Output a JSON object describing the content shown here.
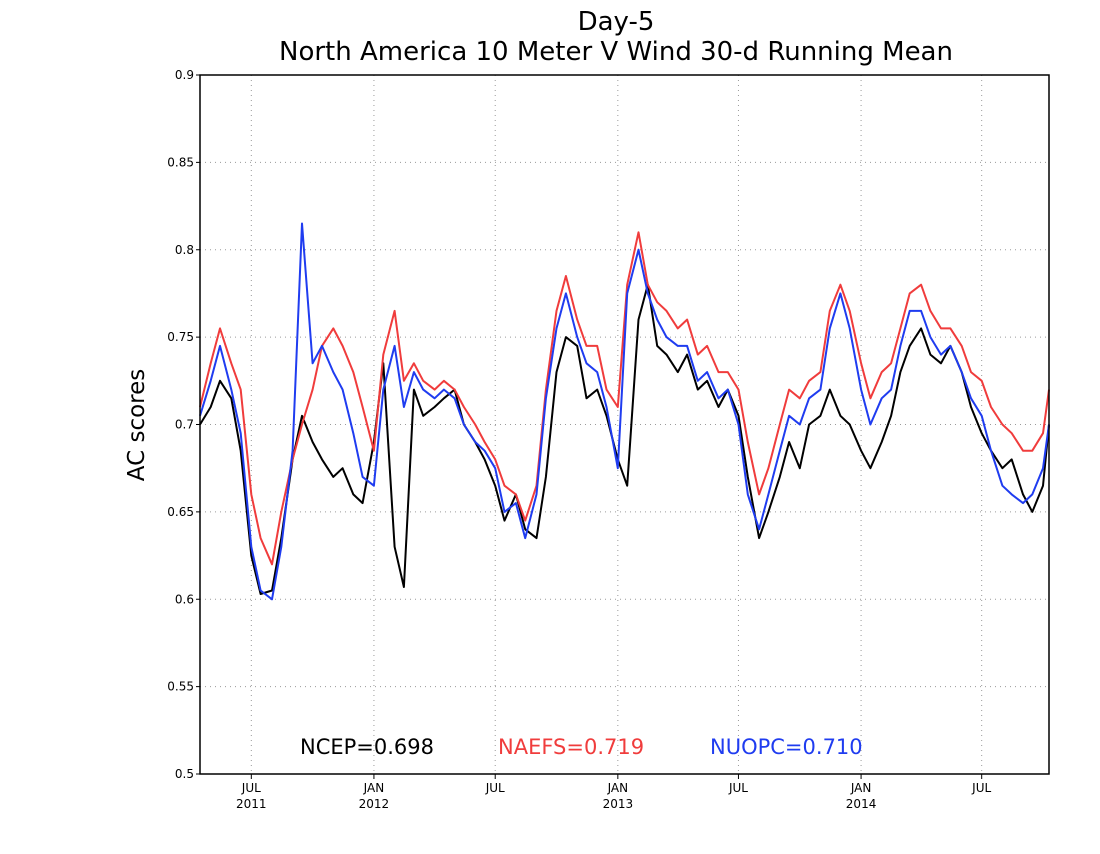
{
  "chart_data": {
    "type": "line",
    "title": "Day-5",
    "subtitle": "North America 10 Meter V Wind 30-d Running Mean",
    "xlabel": "",
    "ylabel": "AC scores",
    "ylim": [
      0.5,
      0.9
    ],
    "y_ticks": [
      "0.5",
      "0.55",
      "0.6",
      "0.65",
      "0.7",
      "0.75",
      "0.8",
      "0.85",
      "0.9"
    ],
    "y_tick_values": [
      0.5,
      0.55,
      0.6,
      0.65,
      0.7,
      0.75,
      0.8,
      0.85,
      0.9
    ],
    "xlim": [
      "2011-04-15",
      "2014-10-10"
    ],
    "x_ticks": [
      {
        "date": "2011-07-01",
        "month": "JUL",
        "year": "2011"
      },
      {
        "date": "2012-01-01",
        "month": "JAN",
        "year": "2012"
      },
      {
        "date": "2012-07-01",
        "month": "JUL",
        "year": ""
      },
      {
        "date": "2013-01-01",
        "month": "JAN",
        "year": "2013"
      },
      {
        "date": "2013-07-01",
        "month": "JUL",
        "year": ""
      },
      {
        "date": "2014-01-01",
        "month": "JAN",
        "year": "2014"
      },
      {
        "date": "2014-07-01",
        "month": "JUL",
        "year": ""
      }
    ],
    "grid": true,
    "legend_placement": "bottom",
    "series": [
      {
        "name": "NCEP",
        "legend_label": "NCEP=0.698",
        "color": "#000000",
        "x": [
          "2011-04-15",
          "2011-05-01",
          "2011-05-15",
          "2011-06-01",
          "2011-06-15",
          "2011-07-01",
          "2011-07-15",
          "2011-08-01",
          "2011-08-15",
          "2011-09-01",
          "2011-09-15",
          "2011-10-01",
          "2011-10-15",
          "2011-11-01",
          "2011-11-15",
          "2011-12-01",
          "2011-12-15",
          "2012-01-01",
          "2012-01-15",
          "2012-02-01",
          "2012-02-15",
          "2012-03-01",
          "2012-03-15",
          "2012-04-01",
          "2012-04-15",
          "2012-05-01",
          "2012-05-15",
          "2012-06-01",
          "2012-06-15",
          "2012-07-01",
          "2012-07-15",
          "2012-08-01",
          "2012-08-15",
          "2012-09-01",
          "2012-09-15",
          "2012-10-01",
          "2012-10-15",
          "2012-11-01",
          "2012-11-15",
          "2012-12-01",
          "2012-12-15",
          "2013-01-01",
          "2013-01-15",
          "2013-02-01",
          "2013-02-15",
          "2013-03-01",
          "2013-03-15",
          "2013-04-01",
          "2013-04-15",
          "2013-05-01",
          "2013-05-15",
          "2013-06-01",
          "2013-06-15",
          "2013-07-01",
          "2013-07-15",
          "2013-08-01",
          "2013-08-15",
          "2013-09-01",
          "2013-09-15",
          "2013-10-01",
          "2013-10-15",
          "2013-11-01",
          "2013-11-15",
          "2013-12-01",
          "2013-12-15",
          "2014-01-01",
          "2014-01-15",
          "2014-02-01",
          "2014-02-15",
          "2014-03-01",
          "2014-03-15",
          "2014-04-01",
          "2014-04-15",
          "2014-05-01",
          "2014-05-15",
          "2014-06-01",
          "2014-06-15",
          "2014-07-01",
          "2014-07-15",
          "2014-08-01",
          "2014-08-15",
          "2014-09-01",
          "2014-09-15",
          "2014-10-01",
          "2014-10-10"
        ],
        "values": [
          0.7,
          0.71,
          0.725,
          0.715,
          0.685,
          0.625,
          0.603,
          0.605,
          0.635,
          0.68,
          0.705,
          0.69,
          0.68,
          0.67,
          0.675,
          0.66,
          0.655,
          0.69,
          0.735,
          0.63,
          0.607,
          0.72,
          0.705,
          0.71,
          0.715,
          0.72,
          0.7,
          0.69,
          0.68,
          0.665,
          0.645,
          0.66,
          0.64,
          0.635,
          0.67,
          0.73,
          0.75,
          0.745,
          0.715,
          0.72,
          0.705,
          0.68,
          0.665,
          0.76,
          0.78,
          0.745,
          0.74,
          0.73,
          0.74,
          0.72,
          0.725,
          0.71,
          0.72,
          0.705,
          0.67,
          0.635,
          0.65,
          0.67,
          0.69,
          0.675,
          0.7,
          0.705,
          0.72,
          0.705,
          0.7,
          0.685,
          0.675,
          0.69,
          0.705,
          0.73,
          0.745,
          0.755,
          0.74,
          0.735,
          0.745,
          0.73,
          0.71,
          0.695,
          0.685,
          0.675,
          0.68,
          0.66,
          0.65,
          0.665,
          0.7
        ]
      },
      {
        "name": "NAEFS",
        "legend_label": "NAEFS=0.719",
        "color": "#f03c3c",
        "x": [
          "2011-04-15",
          "2011-05-01",
          "2011-05-15",
          "2011-06-01",
          "2011-06-15",
          "2011-07-01",
          "2011-07-15",
          "2011-08-01",
          "2011-08-15",
          "2011-09-01",
          "2011-09-15",
          "2011-10-01",
          "2011-10-15",
          "2011-11-01",
          "2011-11-15",
          "2011-12-01",
          "2011-12-15",
          "2012-01-01",
          "2012-01-15",
          "2012-02-01",
          "2012-02-15",
          "2012-03-01",
          "2012-03-15",
          "2012-04-01",
          "2012-04-15",
          "2012-05-01",
          "2012-05-15",
          "2012-06-01",
          "2012-06-15",
          "2012-07-01",
          "2012-07-15",
          "2012-08-01",
          "2012-08-15",
          "2012-09-01",
          "2012-09-15",
          "2012-10-01",
          "2012-10-15",
          "2012-11-01",
          "2012-11-15",
          "2012-12-01",
          "2012-12-15",
          "2013-01-01",
          "2013-01-15",
          "2013-02-01",
          "2013-02-15",
          "2013-03-01",
          "2013-03-15",
          "2013-04-01",
          "2013-04-15",
          "2013-05-01",
          "2013-05-15",
          "2013-06-01",
          "2013-06-15",
          "2013-07-01",
          "2013-07-15",
          "2013-08-01",
          "2013-08-15",
          "2013-09-01",
          "2013-09-15",
          "2013-10-01",
          "2013-10-15",
          "2013-11-01",
          "2013-11-15",
          "2013-12-01",
          "2013-12-15",
          "2014-01-01",
          "2014-01-15",
          "2014-02-01",
          "2014-02-15",
          "2014-03-01",
          "2014-03-15",
          "2014-04-01",
          "2014-04-15",
          "2014-05-01",
          "2014-05-15",
          "2014-06-01",
          "2014-06-15",
          "2014-07-01",
          "2014-07-15",
          "2014-08-01",
          "2014-08-15",
          "2014-09-01",
          "2014-09-15",
          "2014-10-01",
          "2014-10-10"
        ],
        "values": [
          0.71,
          0.735,
          0.755,
          0.735,
          0.72,
          0.66,
          0.635,
          0.62,
          0.65,
          0.68,
          0.7,
          0.72,
          0.745,
          0.755,
          0.745,
          0.73,
          0.71,
          0.685,
          0.74,
          0.765,
          0.725,
          0.735,
          0.725,
          0.72,
          0.725,
          0.72,
          0.71,
          0.7,
          0.69,
          0.68,
          0.665,
          0.66,
          0.645,
          0.665,
          0.72,
          0.765,
          0.785,
          0.76,
          0.745,
          0.745,
          0.72,
          0.71,
          0.78,
          0.81,
          0.78,
          0.77,
          0.765,
          0.755,
          0.76,
          0.74,
          0.745,
          0.73,
          0.73,
          0.72,
          0.69,
          0.66,
          0.675,
          0.7,
          0.72,
          0.715,
          0.725,
          0.73,
          0.765,
          0.78,
          0.765,
          0.735,
          0.715,
          0.73,
          0.735,
          0.755,
          0.775,
          0.78,
          0.765,
          0.755,
          0.755,
          0.745,
          0.73,
          0.725,
          0.71,
          0.7,
          0.695,
          0.685,
          0.685,
          0.695,
          0.72
        ]
      },
      {
        "name": "NUOPC",
        "legend_label": "NUOPC=0.710",
        "color": "#1f3cf0",
        "x": [
          "2011-04-15",
          "2011-05-01",
          "2011-05-15",
          "2011-06-01",
          "2011-06-15",
          "2011-07-01",
          "2011-07-15",
          "2011-08-01",
          "2011-08-15",
          "2011-09-01",
          "2011-09-15",
          "2011-10-01",
          "2011-10-15",
          "2011-11-01",
          "2011-11-15",
          "2011-12-01",
          "2011-12-15",
          "2012-01-01",
          "2012-01-15",
          "2012-02-01",
          "2012-02-15",
          "2012-03-01",
          "2012-03-15",
          "2012-04-01",
          "2012-04-15",
          "2012-05-01",
          "2012-05-15",
          "2012-06-01",
          "2012-06-15",
          "2012-07-01",
          "2012-07-15",
          "2012-08-01",
          "2012-08-15",
          "2012-09-01",
          "2012-09-15",
          "2012-10-01",
          "2012-10-15",
          "2012-11-01",
          "2012-11-15",
          "2012-12-01",
          "2012-12-15",
          "2013-01-01",
          "2013-01-15",
          "2013-02-01",
          "2013-02-15",
          "2013-03-01",
          "2013-03-15",
          "2013-04-01",
          "2013-04-15",
          "2013-05-01",
          "2013-05-15",
          "2013-06-01",
          "2013-06-15",
          "2013-07-01",
          "2013-07-15",
          "2013-08-01",
          "2013-08-15",
          "2013-09-01",
          "2013-09-15",
          "2013-10-01",
          "2013-10-15",
          "2013-11-01",
          "2013-11-15",
          "2013-12-01",
          "2013-12-15",
          "2014-01-01",
          "2014-01-15",
          "2014-02-01",
          "2014-02-15",
          "2014-03-01",
          "2014-03-15",
          "2014-04-01",
          "2014-04-15",
          "2014-05-01",
          "2014-05-15",
          "2014-06-01",
          "2014-06-15",
          "2014-07-01",
          "2014-07-15",
          "2014-08-01",
          "2014-08-15",
          "2014-09-01",
          "2014-09-15",
          "2014-10-01",
          "2014-10-10"
        ],
        "values": [
          0.705,
          0.725,
          0.745,
          0.72,
          0.695,
          0.63,
          0.605,
          0.6,
          0.63,
          0.685,
          0.815,
          0.735,
          0.745,
          0.73,
          0.72,
          0.695,
          0.67,
          0.665,
          0.72,
          0.745,
          0.71,
          0.73,
          0.72,
          0.715,
          0.72,
          0.715,
          0.7,
          0.69,
          0.685,
          0.675,
          0.65,
          0.655,
          0.635,
          0.66,
          0.715,
          0.755,
          0.775,
          0.75,
          0.735,
          0.73,
          0.71,
          0.675,
          0.775,
          0.8,
          0.775,
          0.76,
          0.75,
          0.745,
          0.745,
          0.725,
          0.73,
          0.715,
          0.72,
          0.7,
          0.66,
          0.64,
          0.66,
          0.685,
          0.705,
          0.7,
          0.715,
          0.72,
          0.755,
          0.775,
          0.755,
          0.72,
          0.7,
          0.715,
          0.72,
          0.745,
          0.765,
          0.765,
          0.75,
          0.74,
          0.745,
          0.73,
          0.715,
          0.705,
          0.685,
          0.665,
          0.66,
          0.655,
          0.66,
          0.675,
          0.7
        ]
      }
    ]
  }
}
